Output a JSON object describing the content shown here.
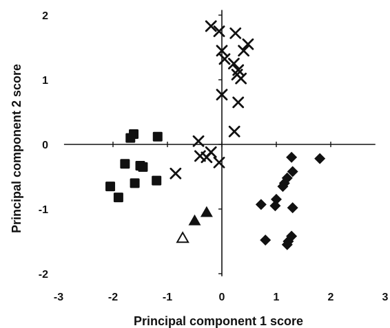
{
  "chart_data": {
    "type": "scatter",
    "title": "",
    "xlabel": "Principal component 1 score",
    "ylabel": "Principal component 2 score",
    "xlim": [
      -3,
      3
    ],
    "ylim": [
      -2,
      2
    ],
    "xticks": [
      -3,
      -2,
      -1,
      0,
      1,
      2,
      3
    ],
    "yticks": [
      -2,
      -1,
      0,
      1,
      2
    ],
    "x_tick_labels": [
      "-3",
      "-2",
      "-1",
      "0",
      "1",
      "2",
      "3"
    ],
    "y_tick_labels": [
      "-2",
      "-1",
      "0",
      "1",
      "2"
    ],
    "axes_cross_at_origin": true,
    "grid": false,
    "legend": "none",
    "series": [
      {
        "marker": "x",
        "color": "#111111",
        "points": [
          [
            -0.2,
            1.83
          ],
          [
            -0.05,
            1.75
          ],
          [
            0.25,
            1.72
          ],
          [
            0.4,
            1.45
          ],
          [
            0.48,
            1.55
          ],
          [
            0.0,
            1.45
          ],
          [
            0.05,
            1.32
          ],
          [
            0.22,
            1.25
          ],
          [
            0.3,
            1.15
          ],
          [
            0.28,
            1.08
          ],
          [
            0.35,
            1.02
          ],
          [
            0.0,
            0.77
          ],
          [
            0.3,
            0.65
          ],
          [
            0.23,
            0.2
          ],
          [
            -0.43,
            0.05
          ],
          [
            -0.4,
            -0.18
          ],
          [
            -0.2,
            -0.12
          ],
          [
            -0.28,
            -0.2
          ],
          [
            -0.05,
            -0.28
          ],
          [
            -0.85,
            -0.45
          ]
        ]
      },
      {
        "marker": "square",
        "color": "#111111",
        "points": [
          [
            -1.62,
            0.16
          ],
          [
            -1.68,
            0.1
          ],
          [
            -1.18,
            0.12
          ],
          [
            -1.78,
            -0.3
          ],
          [
            -1.5,
            -0.33
          ],
          [
            -1.45,
            -0.35
          ],
          [
            -1.6,
            -0.6
          ],
          [
            -1.2,
            -0.56
          ],
          [
            -2.05,
            -0.65
          ],
          [
            -1.9,
            -0.82
          ]
        ]
      },
      {
        "marker": "diamond",
        "color": "#111111",
        "points": [
          [
            1.28,
            -0.2
          ],
          [
            1.8,
            -0.22
          ],
          [
            1.3,
            -0.42
          ],
          [
            1.2,
            -0.52
          ],
          [
            1.15,
            -0.6
          ],
          [
            1.12,
            -0.65
          ],
          [
            0.72,
            -0.93
          ],
          [
            1.0,
            -0.85
          ],
          [
            0.98,
            -0.95
          ],
          [
            1.3,
            -0.98
          ],
          [
            0.8,
            -1.48
          ],
          [
            1.28,
            -1.42
          ],
          [
            1.22,
            -1.5
          ],
          [
            1.2,
            -1.55
          ]
        ]
      },
      {
        "marker": "triangle",
        "color": "#111111",
        "points": [
          [
            -0.28,
            -1.05
          ],
          [
            -0.5,
            -1.18
          ]
        ]
      },
      {
        "marker": "triangle-open",
        "color": "#111111",
        "points": [
          [
            -0.72,
            -1.45
          ]
        ]
      }
    ]
  }
}
